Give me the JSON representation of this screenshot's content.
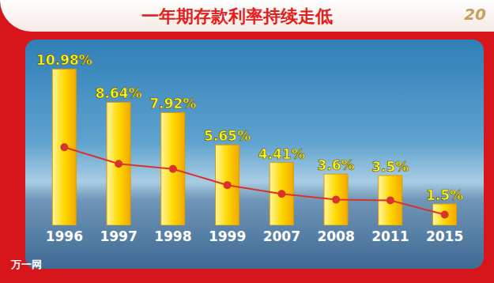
{
  "title": "一年期存款利率持续走低",
  "logo_text": "20",
  "watermark": "万一网",
  "chart_data": {
    "type": "bar",
    "categories": [
      "1996",
      "1997",
      "1998",
      "1999",
      "2007",
      "2008",
      "2011",
      "2015"
    ],
    "ylim": [
      0,
      12.5
    ],
    "y2lim": [
      0,
      25
    ],
    "tick_labels": "x",
    "grid": false,
    "data_labels": true,
    "series": [
      {
        "type": "bar",
        "color": "#ffd800",
        "values": [
          10.98,
          8.64,
          7.92,
          5.65,
          4.41,
          3.6,
          3.5,
          1.5
        ],
        "value_labels": [
          "10.98%",
          "8.64%",
          "7.92%",
          "5.65%",
          "4.41%",
          "3.6%",
          "3.5%",
          "1.5%"
        ]
      },
      {
        "type": "line",
        "axis": "y2",
        "color": "#d9342b",
        "marker": "circle",
        "values": [
          10.98,
          8.64,
          7.92,
          5.65,
          4.41,
          3.6,
          3.5,
          1.5
        ]
      }
    ]
  }
}
